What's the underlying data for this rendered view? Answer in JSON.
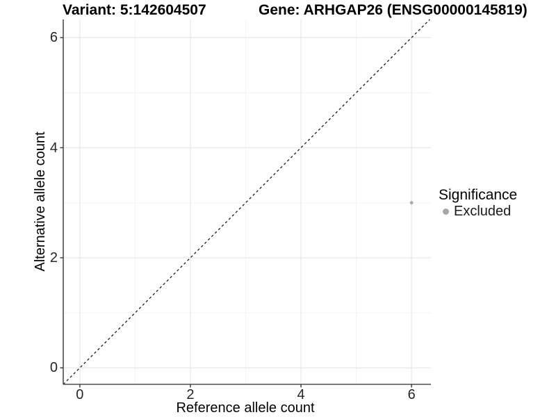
{
  "titles": {
    "variant": "Variant: 5:142604507",
    "gene": "Gene: ARHGAP26 (ENSG00000145819)"
  },
  "chart_data": {
    "type": "scatter",
    "title": "Variant: 5:142604507 — Gene: ARHGAP26 (ENSG00000145819)",
    "xlabel": "Reference allele count",
    "ylabel": "Alternative allele count",
    "xlim": [
      -0.3,
      6.35
    ],
    "ylim": [
      -0.3,
      6.33
    ],
    "x_ticks": [
      0,
      2,
      4,
      6
    ],
    "y_ticks": [
      0,
      2,
      4,
      6
    ],
    "x_minor_ticks": [
      1,
      3,
      5
    ],
    "y_minor_ticks": [
      1,
      3,
      5
    ],
    "grid": "major and minor, light gray on white",
    "series": [
      {
        "name": "Excluded",
        "color": "#a9a9a9",
        "point_radius": 2.4,
        "points": [
          {
            "x": 6,
            "y": 3
          }
        ]
      }
    ],
    "identity_line": {
      "slope": 1,
      "intercept": 0,
      "style": "dashed",
      "color": "#1a1a1a"
    },
    "legend": {
      "title": "Significance",
      "position": "right",
      "items": [
        {
          "label": "Excluded",
          "color": "#a8a8a8"
        }
      ]
    },
    "style": {
      "axis_line_color": "#4d4d4d",
      "tick_mark_color": "#333333",
      "tick_label_color": "#262626",
      "grid_major_color": "#e9e9e9",
      "grid_minor_color": "#f3f3f3",
      "background": "#ffffff"
    }
  }
}
